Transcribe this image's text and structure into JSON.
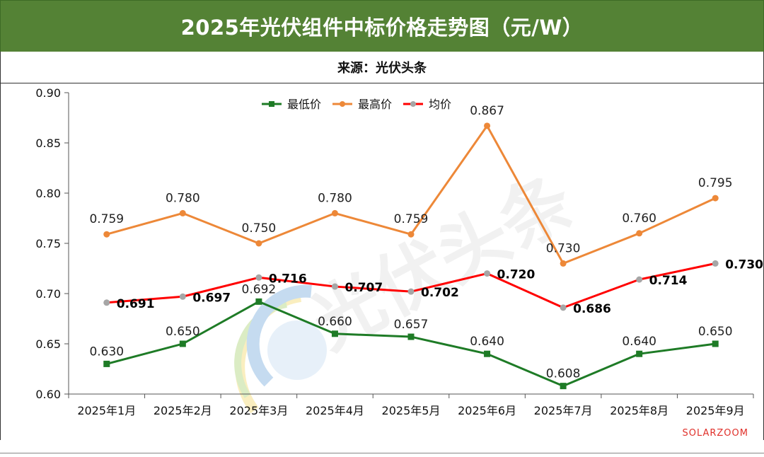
{
  "header": {
    "title": "2025年光伏组件中标价格走势图（元/W）"
  },
  "source": {
    "text": "来源：光伏头条"
  },
  "watermark": {
    "text": "光伏头条",
    "brand": "SOLARZOOM"
  },
  "colors": {
    "header_bg": "#548235",
    "low": "#1e7b26",
    "high": "#ed8838",
    "avg": "#ff0000",
    "avg_marker": "#a6a6a6",
    "brand": "#e0302a"
  },
  "chart_data": {
    "type": "line",
    "title": "2025年光伏组件中标价格走势图（元/W）",
    "xlabel": "",
    "ylabel": "",
    "ylim": [
      0.6,
      0.9
    ],
    "yticks": [
      "0.90",
      "0.85",
      "0.80",
      "0.75",
      "0.70",
      "0.65",
      "0.60"
    ],
    "ytick_values": [
      0.9,
      0.85,
      0.8,
      0.75,
      0.7,
      0.65,
      0.6
    ],
    "categories": [
      "2025年1月",
      "2025年2月",
      "2025年3月",
      "2025年4月",
      "2025年5月",
      "2025年6月",
      "2025年7月",
      "2025年8月",
      "2025年9月"
    ],
    "legend_position": "top-center",
    "series": [
      {
        "key": "low",
        "name": "最低价",
        "marker": "square",
        "values": [
          0.63,
          0.65,
          0.692,
          0.66,
          0.657,
          0.64,
          0.608,
          0.64,
          0.65
        ],
        "labels": [
          "0.630",
          "0.650",
          "0.692",
          "0.660",
          "0.657",
          "0.640",
          "0.608",
          "0.640",
          "0.650"
        ]
      },
      {
        "key": "high",
        "name": "最高价",
        "marker": "circle",
        "values": [
          0.759,
          0.78,
          0.75,
          0.78,
          0.759,
          0.867,
          0.73,
          0.76,
          0.795
        ],
        "labels": [
          "0.759",
          "0.780",
          "0.750",
          "0.780",
          "0.759",
          "0.867",
          "0.730",
          "0.760",
          "0.795"
        ]
      },
      {
        "key": "avg",
        "name": "均价",
        "marker": "circle",
        "values": [
          0.691,
          0.697,
          0.716,
          0.707,
          0.702,
          0.72,
          0.686,
          0.714,
          0.73
        ],
        "labels": [
          "0.691",
          "0.697",
          "0.716",
          "0.707",
          "0.702",
          "0.720",
          "0.686",
          "0.714",
          "0.730"
        ]
      }
    ]
  }
}
